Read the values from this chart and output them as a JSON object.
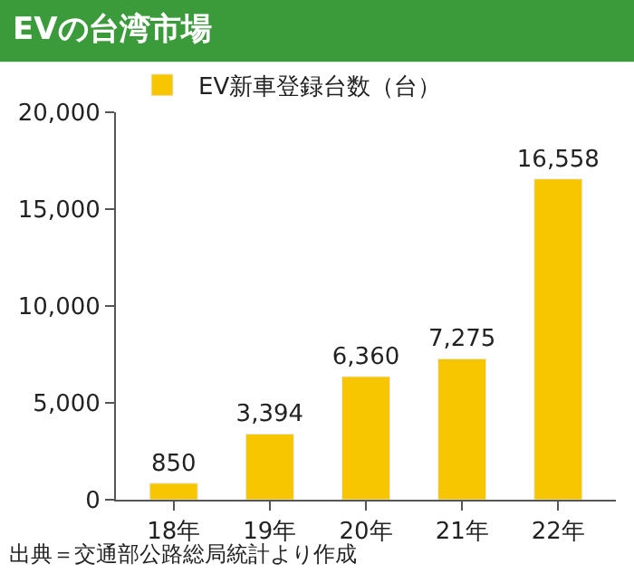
{
  "chart_data": {
    "type": "bar",
    "title": "EVの台湾市場",
    "categories": [
      "18年",
      "19年",
      "20年",
      "21年",
      "22年"
    ],
    "series": [
      {
        "name": "EV新車登録台数（台）",
        "color": "#f7c600",
        "values": [
          850,
          3394,
          6360,
          7275,
          16558
        ]
      }
    ],
    "value_labels": [
      "850",
      "3,394",
      "6,360",
      "7,275",
      "16,558"
    ],
    "ylim": [
      0,
      20000
    ],
    "yticks": [
      {
        "value": 0,
        "label": "0"
      },
      {
        "value": 5000,
        "label": "5,000"
      },
      {
        "value": 10000,
        "label": "10,000"
      },
      {
        "value": 15000,
        "label": "15,000"
      },
      {
        "value": 20000,
        "label": "20,000"
      }
    ],
    "legend": "top left",
    "annotations": [
      "出典＝交通部公路総局統計より作成"
    ]
  }
}
